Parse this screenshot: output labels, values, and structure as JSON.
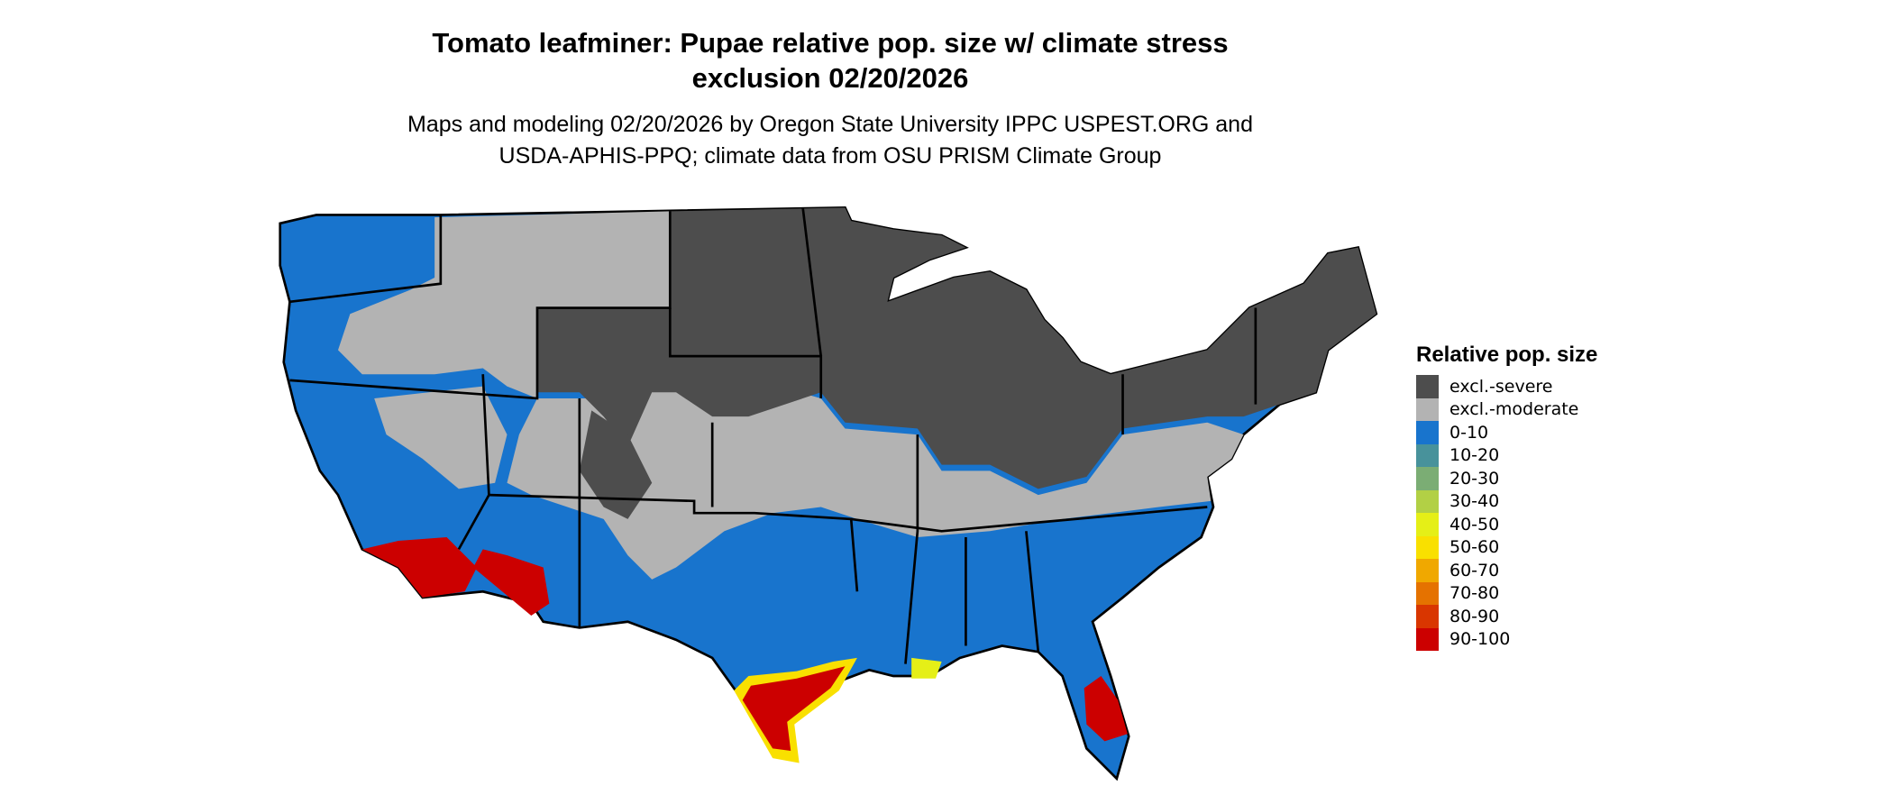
{
  "title": {
    "line1": "Tomato leafminer: Pupae relative pop. size w/ climate stress",
    "line2": "exclusion 02/20/2026"
  },
  "subtitle": {
    "line1": "Maps and modeling 02/20/2026 by Oregon State University IPPC USPEST.ORG and",
    "line2": "USDA-APHIS-PPQ; climate data from OSU PRISM Climate Group"
  },
  "legend": {
    "title": "Relative pop. size",
    "items": [
      {
        "label": "excl.-severe",
        "color": "#4d4d4d"
      },
      {
        "label": "excl.-moderate",
        "color": "#b3b3b3"
      },
      {
        "label": "0-10",
        "color": "#1874cd"
      },
      {
        "label": "10-20",
        "color": "#48929b"
      },
      {
        "label": "20-30",
        "color": "#7bad74"
      },
      {
        "label": "30-40",
        "color": "#b2d045"
      },
      {
        "label": "40-50",
        "color": "#e5ef17"
      },
      {
        "label": "50-60",
        "color": "#f9e000"
      },
      {
        "label": "60-70",
        "color": "#f0a800"
      },
      {
        "label": "70-80",
        "color": "#e57200"
      },
      {
        "label": "80-90",
        "color": "#d93600"
      },
      {
        "label": "90-100",
        "color": "#cc0000"
      }
    ]
  }
}
